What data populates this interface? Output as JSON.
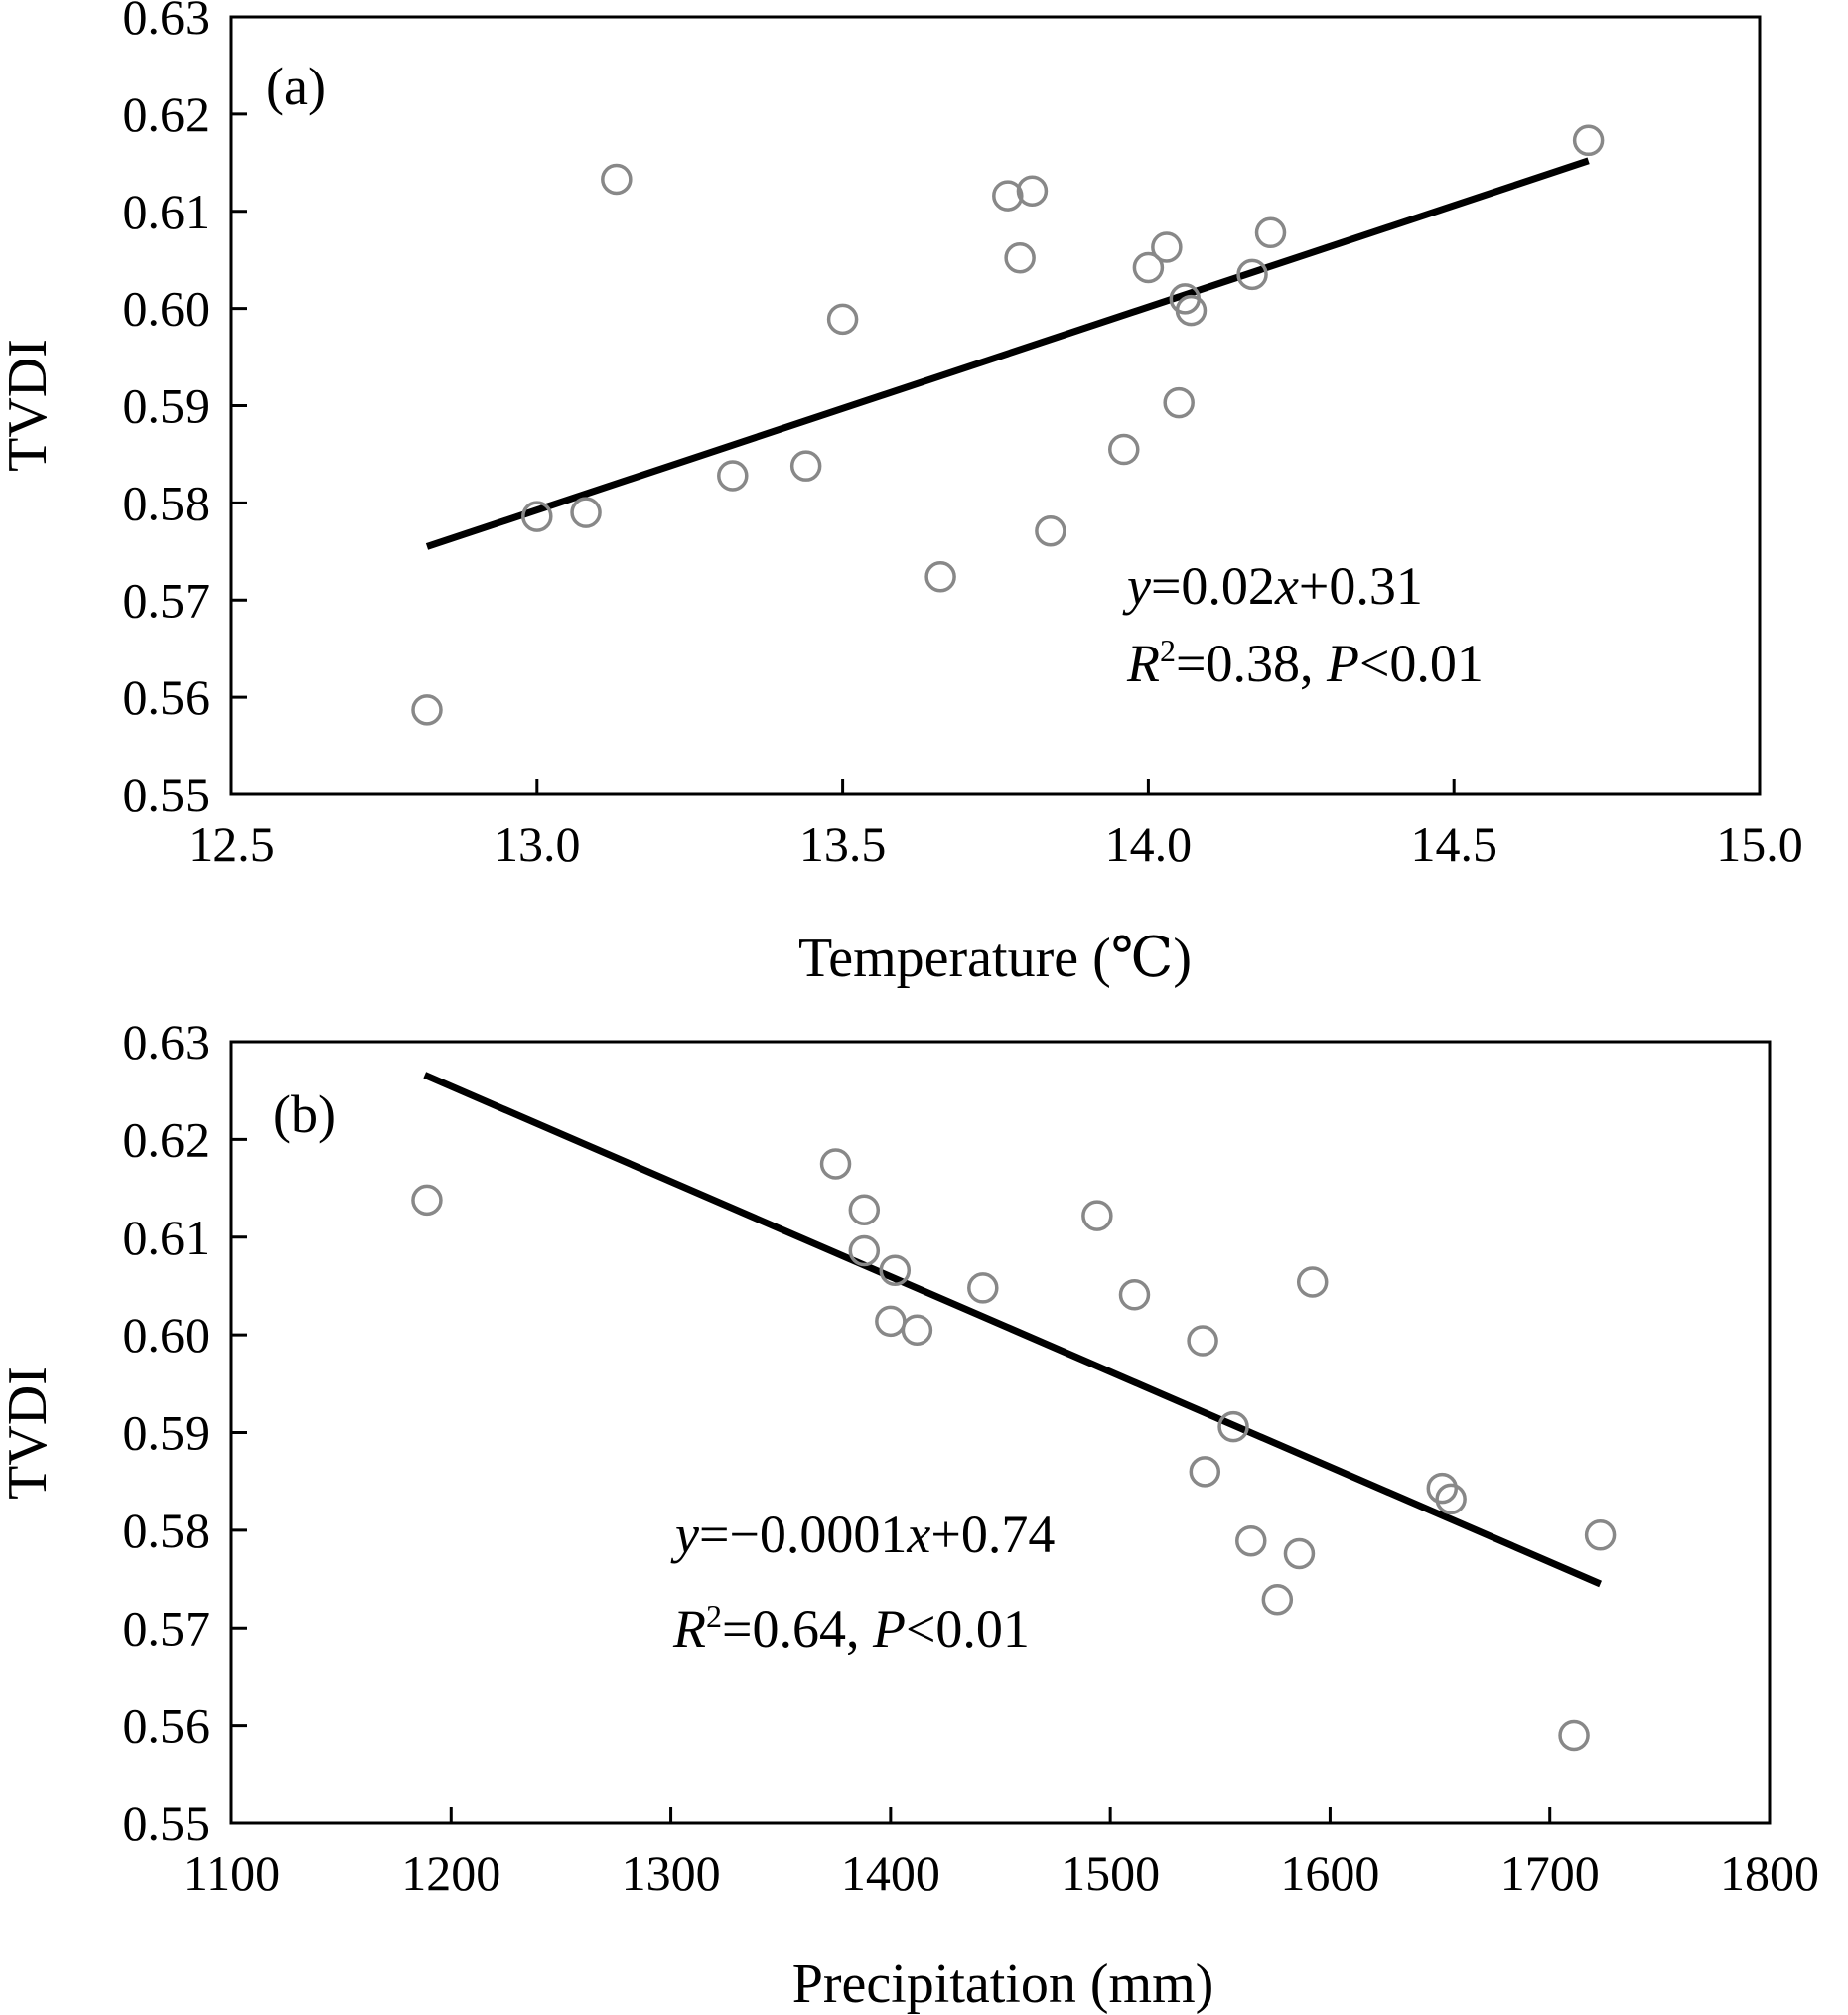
{
  "chart_data": [
    {
      "type": "scatter",
      "panel_label": "(a)",
      "xlabel": "Temperature (℃)",
      "ylabel": "TVDI",
      "xlim": [
        12.5,
        15.0
      ],
      "ylim": [
        0.55,
        0.63
      ],
      "x_ticks": [
        "12.5",
        "13.0",
        "13.5",
        "14.0",
        "14.5",
        "15.0"
      ],
      "y_ticks": [
        "0.55",
        "0.56",
        "0.57",
        "0.58",
        "0.59",
        "0.60",
        "0.61",
        "0.62",
        "0.63"
      ],
      "points": [
        {
          "x": 12.82,
          "y": 0.5587
        },
        {
          "x": 13.0,
          "y": 0.5786
        },
        {
          "x": 13.08,
          "y": 0.579
        },
        {
          "x": 13.13,
          "y": 0.6133
        },
        {
          "x": 13.32,
          "y": 0.5828
        },
        {
          "x": 13.44,
          "y": 0.5838
        },
        {
          "x": 13.5,
          "y": 0.5989
        },
        {
          "x": 13.66,
          "y": 0.5724
        },
        {
          "x": 13.77,
          "y": 0.6116
        },
        {
          "x": 13.81,
          "y": 0.6121
        },
        {
          "x": 13.79,
          "y": 0.6052
        },
        {
          "x": 13.84,
          "y": 0.5771
        },
        {
          "x": 13.96,
          "y": 0.5855
        },
        {
          "x": 14.0,
          "y": 0.6042
        },
        {
          "x": 14.03,
          "y": 0.6063
        },
        {
          "x": 14.05,
          "y": 0.5903
        },
        {
          "x": 14.06,
          "y": 0.601
        },
        {
          "x": 14.07,
          "y": 0.5998
        },
        {
          "x": 14.17,
          "y": 0.6035
        },
        {
          "x": 14.2,
          "y": 0.6078
        },
        {
          "x": 14.72,
          "y": 0.6173
        }
      ],
      "fit_line": {
        "x": [
          12.82,
          14.72
        ],
        "y": [
          0.5755,
          0.6152
        ]
      },
      "equation": {
        "y_var": "y",
        "eq1": "=0.02",
        "x_var": "x",
        "eq2": "+0.31",
        "r_var": "R",
        "r_sup": "2",
        "r_eq": "=0.38, ",
        "p_var": "P",
        "p_eq": "<0.01"
      }
    },
    {
      "type": "scatter",
      "panel_label": "(b)",
      "xlabel": "Precipitation (mm)",
      "ylabel": "TVDI",
      "xlim": [
        1100,
        1800
      ],
      "ylim": [
        0.55,
        0.63
      ],
      "x_ticks": [
        "1100",
        "1200",
        "1300",
        "1400",
        "1500",
        "1600",
        "1700",
        "1800"
      ],
      "y_ticks": [
        "0.55",
        "0.56",
        "0.57",
        "0.58",
        "0.59",
        "0.60",
        "0.61",
        "0.62",
        "0.63"
      ],
      "points": [
        {
          "x": 1189,
          "y": 0.6138
        },
        {
          "x": 1375,
          "y": 0.6175
        },
        {
          "x": 1388,
          "y": 0.6128
        },
        {
          "x": 1388,
          "y": 0.6086
        },
        {
          "x": 1402,
          "y": 0.6066
        },
        {
          "x": 1400,
          "y": 0.6014
        },
        {
          "x": 1412,
          "y": 0.6005
        },
        {
          "x": 1442,
          "y": 0.6048
        },
        {
          "x": 1494,
          "y": 0.6122
        },
        {
          "x": 1511,
          "y": 0.6041
        },
        {
          "x": 1542,
          "y": 0.5994
        },
        {
          "x": 1556,
          "y": 0.5906
        },
        {
          "x": 1543,
          "y": 0.586
        },
        {
          "x": 1564,
          "y": 0.5789
        },
        {
          "x": 1576,
          "y": 0.5729
        },
        {
          "x": 1586,
          "y": 0.5776
        },
        {
          "x": 1592,
          "y": 0.6054
        },
        {
          "x": 1651,
          "y": 0.5843
        },
        {
          "x": 1655,
          "y": 0.5832
        },
        {
          "x": 1711,
          "y": 0.559
        },
        {
          "x": 1723,
          "y": 0.5795
        }
      ],
      "fit_line": {
        "x": [
          1188,
          1723
        ],
        "y": [
          0.6266,
          0.5745
        ]
      },
      "equation": {
        "y_var": "y",
        "eq1": "=−0.0001",
        "x_var": "x",
        "eq2": "+0.74",
        "r_var": "R",
        "r_sup": "2",
        "r_eq": "=0.64, ",
        "p_var": "P",
        "p_eq": "<0.01"
      }
    }
  ]
}
